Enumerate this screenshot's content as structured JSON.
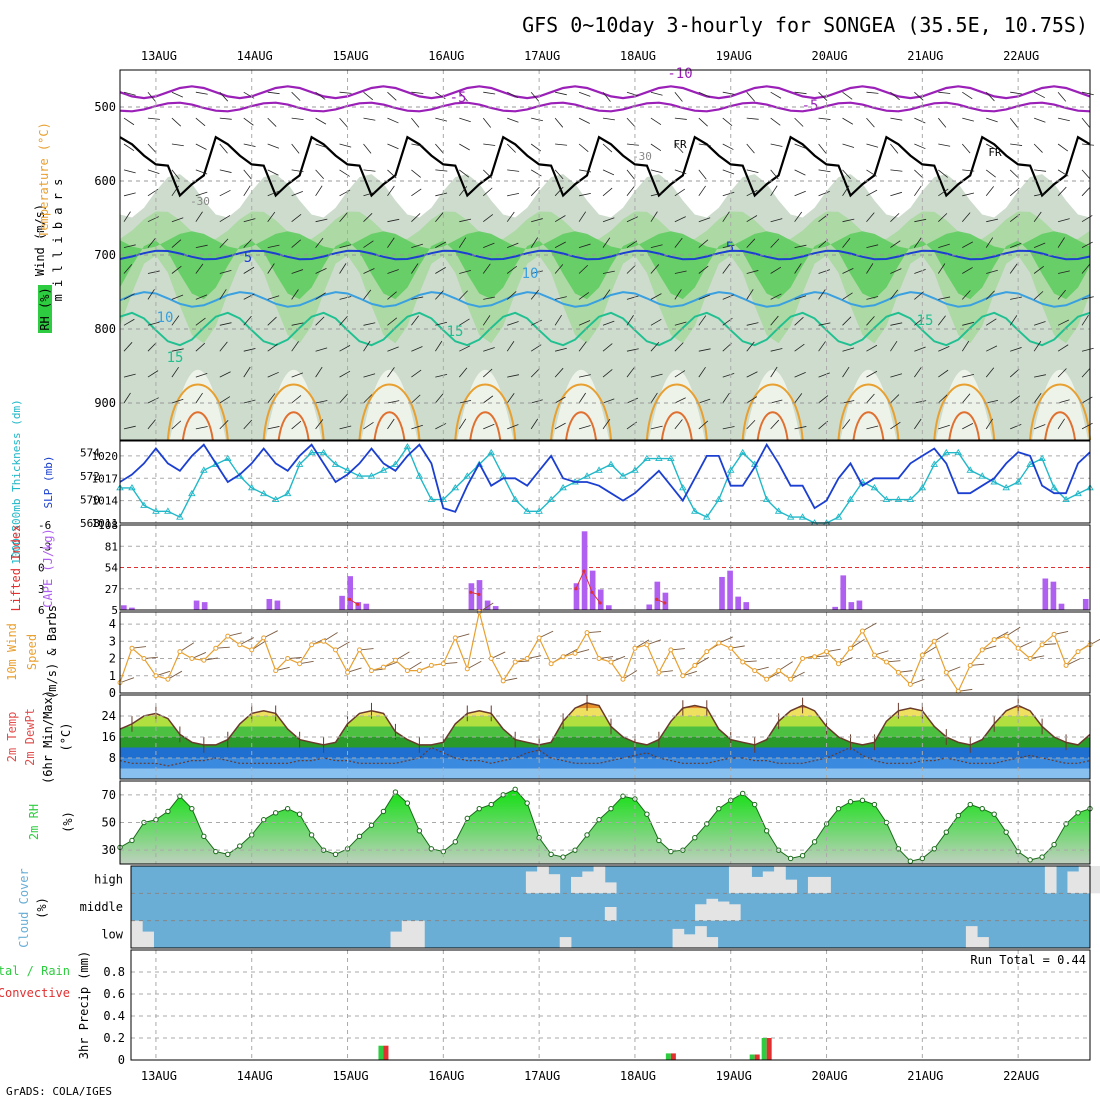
{
  "title": "GFS 0~10day 3-hourly for SONGEA (35.5E, 10.75S)",
  "credit": "GrADS: COLA/IGES",
  "run_total": "Run Total = 0.44",
  "date_labels": [
    "13AUG",
    "14AUG",
    "15AUG",
    "16AUG",
    "17AUG",
    "18AUG",
    "19AUG",
    "20AUG",
    "21AUG",
    "22AUG"
  ],
  "colors": {
    "green": "#2ecc40",
    "purple": "#b060f0",
    "cyan": "#20b8c8",
    "blue": "#1b3fd0",
    "orange": "#e8a030",
    "cloud_bg": "#6aaed6",
    "cloud": "#e4e4e4"
  },
  "chart_data": [
    {
      "id": "upper-air",
      "type": "heatmap",
      "title": "Wind (m/s) Temperature (°C) RH (%)",
      "ylabel": "millibars",
      "label_wind": "Wind (m/s)",
      "label_temp": "Temperature (°C)",
      "label_rh": "RH (%)",
      "label_mb": "m i l l i b a r s",
      "y_ticks": [
        "500",
        "600",
        "700",
        "800",
        "900"
      ],
      "pressure_range": [
        450,
        950
      ],
      "temp_labels": [
        "-10",
        "-5",
        "-5",
        "5",
        "5",
        "10",
        "10",
        "15",
        "15",
        "15",
        "-30",
        "-30",
        "FR",
        "FR"
      ]
    },
    {
      "id": "slp-thickness",
      "type": "line",
      "label_thk": "1000-500mb Thickness (dm)",
      "label_slp": "SLP (mb)",
      "left_ticks": [
        "574",
        "572",
        "570",
        "568"
      ],
      "right_ticks": [
        "1020",
        "1017",
        "1014",
        "1011"
      ],
      "slp_range": [
        1011,
        1022
      ],
      "thk_range": [
        568,
        575
      ],
      "series": [
        {
          "name": "SLP (mb)",
          "values": [
            1016.5,
            1017.5,
            1019,
            1021,
            1019,
            1018,
            1020,
            1021.5,
            1019,
            1016.5,
            1017.5,
            1019,
            1021,
            1019,
            1018,
            1020,
            1021.5,
            1019,
            1016.5,
            1017.5,
            1019,
            1021,
            1019,
            1018,
            1020,
            1021.5,
            1019,
            1013,
            1012.5,
            1016,
            1019,
            1016,
            1017,
            1017,
            1016,
            1018,
            1020,
            1017,
            1016.5,
            1016.5,
            1016,
            1015,
            1014,
            1015,
            1016.5,
            1018,
            1016,
            1014,
            1017,
            1020,
            1020,
            1016,
            1016,
            1018.5,
            1021.5,
            1019,
            1016,
            1016,
            1013,
            1014,
            1017,
            1019,
            1016,
            1017,
            1017,
            1017,
            1019,
            1020,
            1021,
            1019,
            1015,
            1015,
            1016,
            1017,
            1019,
            1020.5,
            1020,
            1016,
            1015,
            1015,
            1019,
            1020.5
          ]
        },
        {
          "name": "Thickness (dm)",
          "values": [
            571,
            571,
            569.5,
            569,
            569,
            568.5,
            570.5,
            572.5,
            573,
            573.5,
            572,
            571,
            570.5,
            570,
            570.5,
            573,
            574,
            574,
            573,
            572.5,
            572,
            572,
            572.5,
            573,
            574.5,
            572,
            570,
            570,
            571,
            572,
            573,
            574,
            572,
            570,
            569,
            569,
            570,
            571,
            571.5,
            572,
            572.5,
            573,
            572,
            572.5,
            573.5,
            573.5,
            573.5,
            571,
            569,
            568.5,
            570,
            572.5,
            574,
            573,
            570,
            569,
            568.5,
            568.5,
            568,
            568,
            568.5,
            570,
            571.5,
            571,
            570,
            570,
            570,
            571,
            573,
            574,
            574,
            572.5,
            572,
            571.5,
            571,
            571.5,
            573,
            573.5,
            571,
            570,
            570.5,
            571
          ]
        }
      ]
    },
    {
      "id": "cape-li",
      "type": "bar",
      "label_li": "Lifted Index",
      "label_cape": "CAPE (J/kg)",
      "left_ticks": [
        "-6",
        "-3",
        "0",
        "3",
        "6"
      ],
      "right_ticks": [
        "108",
        "81",
        "54",
        "27",
        "5"
      ],
      "cape_range": [
        0,
        108
      ],
      "li_range": [
        -6,
        6
      ],
      "series": [
        {
          "name": "CAPE (J/kg)",
          "values": [
            6,
            3,
            0,
            0,
            0,
            0,
            0,
            0,
            0,
            12,
            10,
            0,
            0,
            0,
            0,
            0,
            0,
            0,
            14,
            12,
            0,
            0,
            0,
            0,
            0,
            0,
            0,
            18,
            43,
            10,
            8,
            0,
            0,
            0,
            0,
            0,
            0,
            0,
            0,
            0,
            0,
            0,
            0,
            34,
            38,
            12,
            5,
            0,
            0,
            0,
            0,
            0,
            0,
            0,
            0,
            0,
            34,
            100,
            50,
            26,
            6,
            0,
            0,
            0,
            0,
            7,
            36,
            22,
            0,
            0,
            0,
            0,
            0,
            0,
            42,
            50,
            17,
            10,
            0,
            0,
            0,
            0,
            0,
            0,
            0,
            0,
            0,
            0,
            4,
            44,
            10,
            12,
            0,
            0,
            0,
            0,
            0,
            0,
            0,
            0,
            0,
            0,
            0,
            0,
            0,
            0,
            0,
            0,
            0,
            0,
            0,
            0,
            0,
            0,
            40,
            36,
            8,
            0,
            0,
            14
          ]
        },
        {
          "name": "Lifted Index",
          "values": [
            null,
            null,
            null,
            null,
            null,
            null,
            null,
            null,
            null,
            null,
            null,
            null,
            null,
            null,
            null,
            null,
            null,
            null,
            null,
            null,
            null,
            null,
            null,
            null,
            null,
            null,
            null,
            null,
            4.5,
            5.2,
            null,
            null,
            null,
            null,
            null,
            null,
            null,
            null,
            null,
            null,
            null,
            null,
            null,
            3.5,
            3.8,
            null,
            null,
            null,
            null,
            null,
            null,
            null,
            null,
            null,
            null,
            null,
            3,
            0.5,
            3.5,
            5,
            null,
            null,
            null,
            null,
            null,
            null,
            4.5,
            5,
            null,
            null,
            null,
            null,
            null,
            null,
            null,
            null,
            null,
            null,
            null,
            null,
            null,
            null,
            null,
            null,
            null,
            null,
            null,
            null,
            null,
            null,
            null,
            null,
            null,
            null,
            null,
            null,
            null,
            null,
            null,
            null,
            null,
            null,
            null,
            null,
            null,
            null,
            null,
            null,
            null,
            null,
            null,
            null,
            null,
            null,
            null,
            null,
            null
          ]
        }
      ]
    },
    {
      "id": "wind10m",
      "type": "line",
      "label_1": "10m Wind",
      "label_2": "Speed",
      "label_3": "(m/s) & Barbs",
      "y_ticks": [
        "4",
        "3",
        "2",
        "1",
        "0"
      ],
      "ylim": [
        0,
        4.7
      ],
      "values": [
        0.6,
        2.6,
        2,
        1,
        0.8,
        2.4,
        2,
        1.9,
        2.6,
        3.3,
        2.8,
        2.5,
        3.2,
        1.3,
        2,
        1.7,
        2.8,
        3,
        2.5,
        1.2,
        2.5,
        1.3,
        1.5,
        1.9,
        1.3,
        1.3,
        1.6,
        1.7,
        3.2,
        1.4,
        4.7,
        2,
        0.7,
        1.8,
        2,
        3.2,
        1.7,
        2.1,
        2.3,
        3.5,
        2,
        1.8,
        0.8,
        2.6,
        2.8,
        1.2,
        2.5,
        1,
        1.6,
        2.4,
        2.9,
        2.6,
        1.8,
        1.3,
        0.8,
        1.3,
        0.8,
        2,
        2.1,
        2.4,
        1.7,
        2.6,
        3.6,
        2.2,
        1.8,
        1.2,
        0.5,
        2.2,
        3,
        1.2,
        0.1,
        1.6,
        2.5,
        3.1,
        3.3,
        2.6,
        2,
        2.8,
        3.4,
        1.6,
        2.4,
        2.8
      ]
    },
    {
      "id": "temp2m",
      "type": "area",
      "label_1": "2m Temp",
      "label_2": "2m DewPt",
      "label_3": "(6hr Min/Max)",
      "label_4": "(°C)",
      "y_ticks": [
        "24",
        "16",
        "8"
      ],
      "ylim": [
        0,
        32
      ],
      "temp": [
        19,
        21,
        24,
        25,
        23,
        17,
        14,
        13,
        13,
        15,
        21,
        25,
        26,
        25,
        19,
        15,
        14,
        13,
        14,
        21,
        25,
        26,
        25,
        18,
        15,
        13,
        13,
        14,
        21,
        25,
        26,
        25,
        19,
        15,
        14,
        13,
        14,
        22,
        27,
        29,
        28,
        20,
        16,
        14,
        13,
        15,
        22,
        27,
        28,
        27,
        19,
        15,
        14,
        13,
        15,
        22,
        26,
        28,
        26,
        20,
        16,
        14,
        13,
        14,
        22,
        26,
        27,
        26,
        20,
        16,
        14,
        13,
        15,
        21,
        26,
        28,
        26,
        20,
        16,
        14,
        13,
        17
      ],
      "dewpoint": [
        7,
        6,
        6,
        6,
        5,
        6,
        7,
        7,
        8,
        7,
        6,
        6,
        6,
        6,
        6,
        7,
        7,
        8,
        7,
        7,
        6,
        6,
        6,
        6,
        7,
        8,
        12,
        10,
        8,
        7,
        7,
        6,
        7,
        8,
        10,
        11,
        8,
        7,
        6,
        6,
        6,
        7,
        8,
        9,
        10,
        8,
        7,
        6,
        6,
        6,
        7,
        8,
        8,
        7,
        7,
        6,
        6,
        6,
        7,
        8,
        10,
        12,
        9,
        7,
        6,
        6,
        6,
        7,
        7,
        8,
        7,
        6,
        6,
        6,
        7,
        8,
        9,
        8,
        7,
        6,
        6,
        7
      ]
    },
    {
      "id": "rh2m",
      "type": "area",
      "label_1": "2m RH",
      "label_2": "(%)",
      "y_ticks": [
        "70",
        "50",
        "30"
      ],
      "ylim": [
        20,
        80
      ],
      "values": [
        32,
        37,
        50,
        52,
        58,
        69,
        60,
        40,
        29,
        27,
        33,
        41,
        52,
        57,
        60,
        56,
        41,
        30,
        27,
        31,
        40,
        48,
        58,
        72,
        64,
        44,
        31,
        29,
        36,
        53,
        60,
        63,
        70,
        74,
        64,
        39,
        27,
        25,
        30,
        41,
        52,
        60,
        69,
        67,
        56,
        37,
        29,
        30,
        39,
        49,
        60,
        66,
        71,
        63,
        44,
        30,
        24,
        26,
        36,
        49,
        60,
        65,
        66,
        63,
        50,
        31,
        22,
        24,
        31,
        43,
        55,
        63,
        60,
        56,
        43,
        29,
        23,
        25,
        34,
        49,
        57,
        60,
        67,
        72
      ]
    },
    {
      "id": "cloud",
      "type": "bar",
      "label": "Cloud Cover (%)",
      "label_1": "Cloud Cover",
      "label_2": "(%)",
      "levels": [
        "high",
        "middle",
        "low"
      ],
      "series": [
        {
          "name": "high",
          "values": [
            0,
            0,
            0,
            0,
            0,
            0,
            0,
            0,
            0,
            0,
            0,
            0,
            0,
            0,
            0,
            0,
            0,
            0,
            0,
            0,
            0,
            0,
            0,
            0,
            0,
            0,
            0,
            0,
            0,
            0,
            0,
            0,
            0,
            0,
            0,
            80,
            100,
            70,
            0,
            60,
            80,
            100,
            40,
            0,
            0,
            0,
            0,
            0,
            0,
            0,
            0,
            0,
            0,
            100,
            100,
            60,
            80,
            100,
            50,
            0,
            60,
            60,
            0,
            0,
            0,
            0,
            0,
            0,
            0,
            0,
            0,
            0,
            0,
            0,
            0,
            0,
            0,
            0,
            0,
            0,
            0,
            100,
            0,
            80,
            100,
            100
          ]
        },
        {
          "name": "middle",
          "values": [
            0,
            0,
            0,
            0,
            0,
            0,
            0,
            0,
            0,
            0,
            0,
            0,
            0,
            0,
            0,
            0,
            0,
            0,
            0,
            0,
            0,
            0,
            0,
            0,
            0,
            0,
            0,
            0,
            0,
            0,
            0,
            0,
            0,
            0,
            0,
            0,
            0,
            0,
            0,
            0,
            0,
            0,
            50,
            0,
            0,
            0,
            0,
            0,
            0,
            0,
            60,
            80,
            70,
            60,
            0,
            0,
            0,
            0,
            0,
            0,
            0,
            0,
            0,
            0,
            0,
            0,
            0,
            0,
            0,
            0,
            0,
            0,
            0,
            0,
            0,
            0,
            0,
            0,
            0,
            0,
            0,
            0,
            0,
            0,
            0
          ]
        },
        {
          "name": "low",
          "values": [
            100,
            60,
            0,
            0,
            0,
            0,
            0,
            0,
            0,
            0,
            0,
            0,
            0,
            0,
            0,
            0,
            0,
            0,
            0,
            0,
            0,
            0,
            0,
            60,
            100,
            100,
            0,
            0,
            0,
            0,
            0,
            0,
            0,
            0,
            0,
            0,
            0,
            0,
            40,
            0,
            0,
            0,
            0,
            0,
            0,
            0,
            0,
            0,
            70,
            50,
            80,
            40,
            0,
            0,
            0,
            0,
            0,
            0,
            0,
            0,
            0,
            0,
            0,
            0,
            0,
            0,
            0,
            0,
            0,
            0,
            0,
            0,
            0,
            0,
            80,
            40,
            0,
            0,
            0,
            0,
            0,
            0,
            0,
            0,
            0
          ]
        }
      ]
    },
    {
      "id": "precip",
      "type": "bar",
      "label_1": "3hr Precip (mm)",
      "label_2": "Total / Rain",
      "label_3": "Convective",
      "y_ticks": [
        "0.8",
        "0.6",
        "0.4",
        "0.2",
        "0"
      ],
      "ylim": [
        0,
        1.0
      ],
      "events": [
        {
          "date": "15AUG",
          "hour": 9,
          "total": 0.13,
          "convective": 0.13
        },
        {
          "date": "18AUG",
          "hour": 9,
          "total": 0.06,
          "convective": 0.06
        },
        {
          "date": "19AUG",
          "hour": 6,
          "total": 0.05,
          "convective": 0.05
        },
        {
          "date": "19AUG",
          "hour": 9,
          "total": 0.2,
          "convective": 0.2
        }
      ]
    }
  ]
}
